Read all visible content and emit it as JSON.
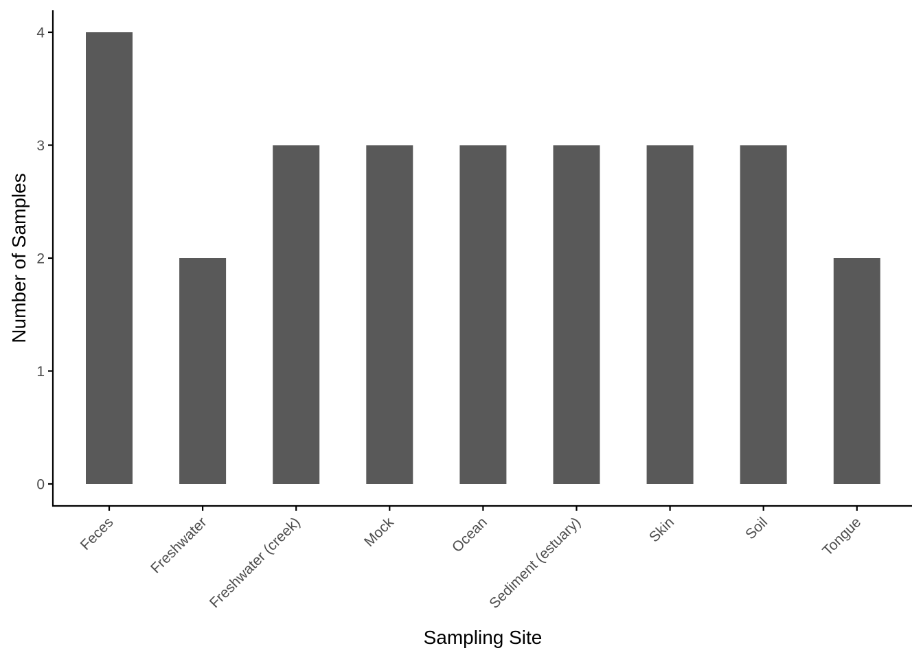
{
  "chart_data": {
    "type": "bar",
    "title": "",
    "xlabel": "Sampling Site",
    "ylabel": "Number of Samples",
    "categories": [
      "Feces",
      "Freshwater",
      "Freshwater (creek)",
      "Mock",
      "Ocean",
      "Sediment (estuary)",
      "Skin",
      "Soil",
      "Tongue"
    ],
    "values": [
      4,
      2,
      3,
      3,
      3,
      3,
      3,
      3,
      2
    ],
    "ylim": [
      0,
      4
    ],
    "yticks": [
      0,
      1,
      2,
      3,
      4
    ],
    "grid": false,
    "legend": "none",
    "bar_color": "#595959",
    "axis_color": "#000000",
    "tick_label_color": "#4d4d4d"
  }
}
